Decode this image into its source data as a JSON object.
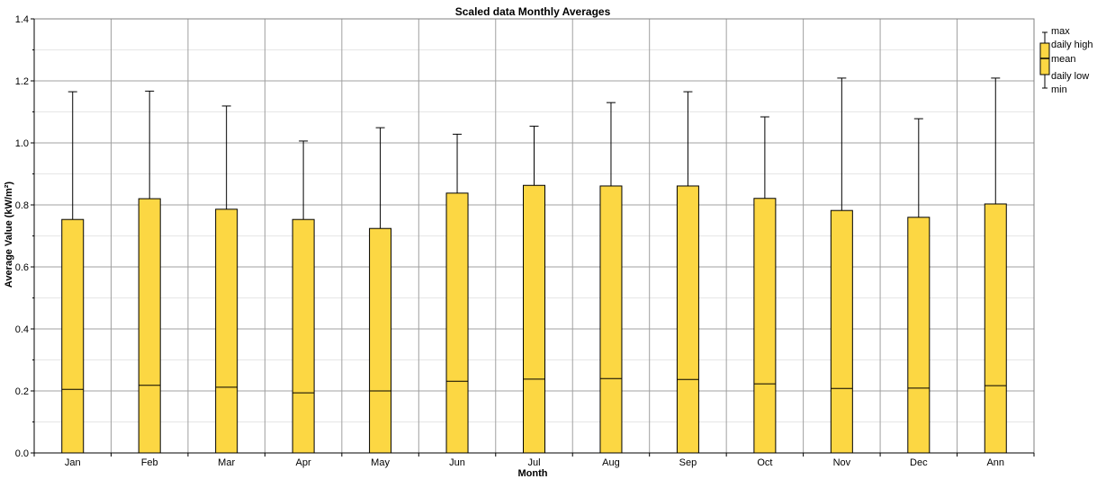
{
  "chart_data": {
    "type": "box",
    "title": "Scaled data Monthly Averages",
    "xlabel": "Month",
    "ylabel": "Average Value (kW/m²)",
    "ylim": [
      0,
      1.4
    ],
    "yticks": [
      "0.0",
      "0.2",
      "0.4",
      "0.6",
      "0.8",
      "1.0",
      "1.2",
      "1.4"
    ],
    "grid": true,
    "legend_position": "right",
    "box_color": "#FCD743",
    "categories": [
      "Jan",
      "Feb",
      "Mar",
      "Apr",
      "May",
      "Jun",
      "Jul",
      "Aug",
      "Sep",
      "Oct",
      "Nov",
      "Dec",
      "Ann"
    ],
    "series": [
      {
        "min": 0.0,
        "daily_low": 0.0,
        "mean": 0.205,
        "daily_high": 0.753,
        "max": 1.165
      },
      {
        "min": 0.0,
        "daily_low": 0.0,
        "mean": 0.218,
        "daily_high": 0.82,
        "max": 1.167
      },
      {
        "min": 0.0,
        "daily_low": 0.0,
        "mean": 0.212,
        "daily_high": 0.786,
        "max": 1.119
      },
      {
        "min": 0.0,
        "daily_low": 0.0,
        "mean": 0.194,
        "daily_high": 0.753,
        "max": 1.006
      },
      {
        "min": 0.0,
        "daily_low": 0.0,
        "mean": 0.2,
        "daily_high": 0.724,
        "max": 1.049
      },
      {
        "min": 0.0,
        "daily_low": 0.0,
        "mean": 0.231,
        "daily_high": 0.838,
        "max": 1.028
      },
      {
        "min": 0.0,
        "daily_low": 0.0,
        "mean": 0.238,
        "daily_high": 0.863,
        "max": 1.054
      },
      {
        "min": 0.0,
        "daily_low": 0.0,
        "mean": 0.24,
        "daily_high": 0.861,
        "max": 1.13
      },
      {
        "min": 0.0,
        "daily_low": 0.0,
        "mean": 0.237,
        "daily_high": 0.861,
        "max": 1.165
      },
      {
        "min": 0.0,
        "daily_low": 0.0,
        "mean": 0.223,
        "daily_high": 0.821,
        "max": 1.084
      },
      {
        "min": 0.0,
        "daily_low": 0.0,
        "mean": 0.208,
        "daily_high": 0.782,
        "max": 1.209
      },
      {
        "min": 0.0,
        "daily_low": 0.0,
        "mean": 0.209,
        "daily_high": 0.76,
        "max": 1.078
      },
      {
        "min": 0.0,
        "daily_low": 0.0,
        "mean": 0.217,
        "daily_high": 0.803,
        "max": 1.209
      }
    ],
    "legend": {
      "max": "max",
      "daily_high": "daily high",
      "mean": "mean",
      "daily_low": "daily low",
      "min": "min"
    }
  }
}
